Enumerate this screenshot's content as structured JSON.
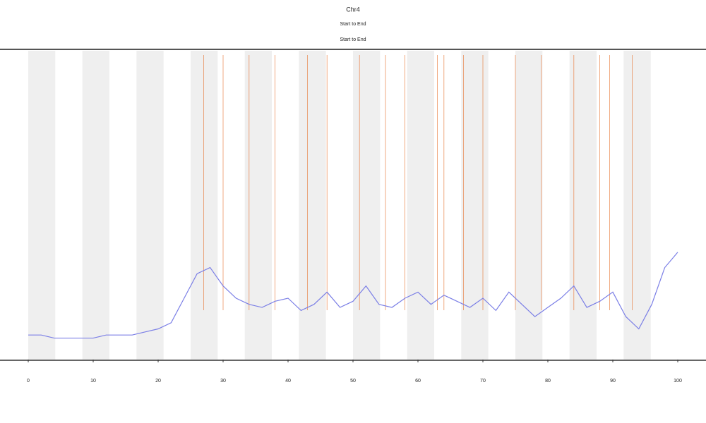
{
  "chart_data": {
    "type": "line",
    "title": "Chr4",
    "subtitle": "Start to End",
    "subtitle2": "Start to End",
    "xlim": [
      0,
      100
    ],
    "xticks": [
      0,
      10,
      20,
      30,
      40,
      50,
      60,
      70,
      80,
      90,
      100
    ],
    "ylim": [
      0,
      100
    ],
    "x": [
      0,
      2,
      4,
      6,
      8,
      10,
      12,
      14,
      16,
      18,
      20,
      22,
      24,
      26,
      28,
      30,
      32,
      34,
      36,
      38,
      40,
      42,
      44,
      46,
      48,
      50,
      52,
      54,
      56,
      58,
      60,
      62,
      64,
      66,
      68,
      70,
      72,
      74,
      76,
      78,
      80,
      82,
      84,
      86,
      88,
      90,
      92,
      94,
      96,
      98,
      100
    ],
    "series": [
      {
        "color": "#7b7fe6",
        "values": [
          8,
          8,
          7,
          7,
          7,
          7,
          8,
          8,
          8,
          9,
          10,
          12,
          20,
          28,
          30,
          24,
          20,
          18,
          17,
          19,
          20,
          16,
          18,
          22,
          17,
          19,
          24,
          18,
          17,
          20,
          22,
          18,
          21,
          19,
          17,
          20,
          16,
          22,
          18,
          14,
          17,
          20,
          24,
          17,
          19,
          22,
          14,
          10,
          18,
          30,
          35
        ]
      }
    ],
    "event_color": "#e87a3a",
    "event_x": [
      27,
      30,
      34,
      38,
      43,
      46,
      51,
      55,
      58,
      63,
      64,
      67,
      70,
      75,
      79,
      84,
      88,
      89.5,
      93
    ]
  }
}
